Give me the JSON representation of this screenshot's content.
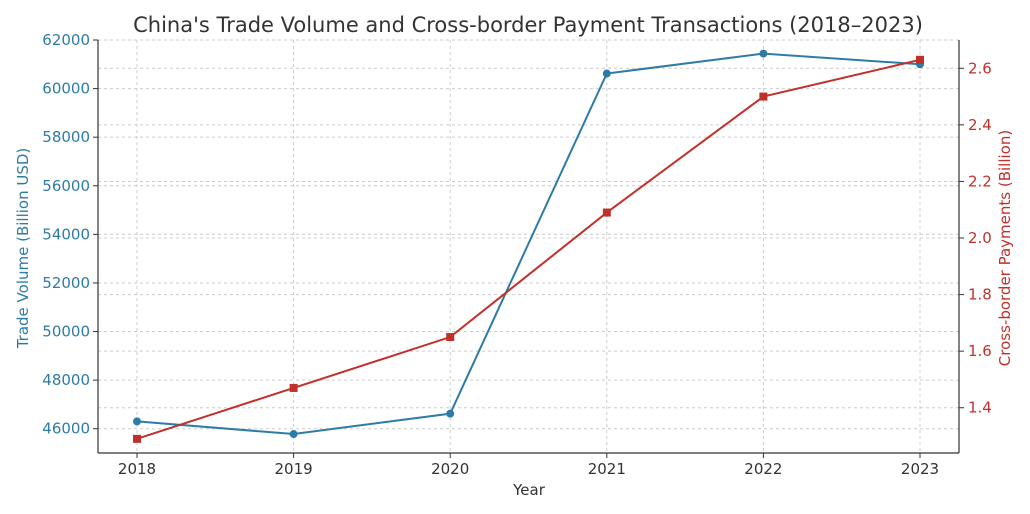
{
  "chart_data": {
    "type": "line",
    "title": "China's Trade Volume and Cross-border Payment Transactions (2018–2023)",
    "xlabel": "Year",
    "categories": [
      "2018",
      "2019",
      "2020",
      "2021",
      "2022",
      "2023"
    ],
    "y_left": {
      "label": "Trade Volume (Billion USD)",
      "range": [
        45000,
        62000
      ],
      "ticks": [
        "46000",
        "48000",
        "50000",
        "52000",
        "54000",
        "56000",
        "58000",
        "60000",
        "62000"
      ],
      "color": "#2e7ca6"
    },
    "y_right": {
      "label": "Cross-border Payments (Billion)",
      "range": [
        1.24,
        2.7
      ],
      "ticks": [
        "1.4",
        "1.6",
        "1.8",
        "2.0",
        "2.2",
        "2.4",
        "2.6"
      ],
      "color": "#c0312b"
    },
    "series": [
      {
        "axis": "left",
        "marker": "circle",
        "color": "#2e7ca6",
        "values": [
          46300,
          45780,
          46620,
          60620,
          61440,
          61000
        ]
      },
      {
        "axis": "right",
        "marker": "square",
        "color": "#c0312b",
        "values": [
          1.29,
          1.47,
          1.65,
          2.09,
          2.5,
          2.63
        ]
      }
    ],
    "grid": true
  }
}
